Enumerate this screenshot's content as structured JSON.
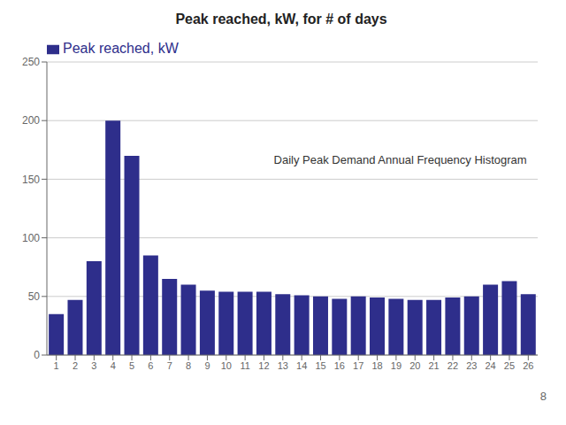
{
  "chart_data": {
    "type": "bar",
    "title": "Peak reached, kW, for # of days",
    "categories": [
      1,
      2,
      3,
      4,
      5,
      6,
      7,
      8,
      9,
      10,
      11,
      12,
      13,
      14,
      15,
      16,
      17,
      18,
      19,
      20,
      21,
      22,
      23,
      24,
      25,
      26
    ],
    "series": [
      {
        "name": "Peak reached, kW",
        "color": "#2E2E8B",
        "values": [
          35,
          47,
          80,
          200,
          170,
          85,
          65,
          60,
          55,
          54,
          54,
          54,
          52,
          51,
          50,
          48,
          50,
          49,
          48,
          47,
          47,
          49,
          50,
          60,
          63,
          52
        ]
      }
    ],
    "ylim": [
      0,
      250
    ],
    "yticks": [
      0,
      50,
      100,
      150,
      200,
      250
    ],
    "grid": true,
    "legend": "top-left",
    "annotations": [
      "Daily Peak Demand Annual Frequency Histogram",
      "8"
    ]
  }
}
